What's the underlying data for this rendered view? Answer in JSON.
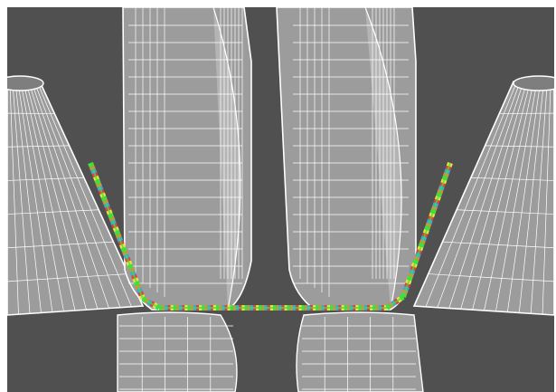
{
  "viewport": {
    "background": "#505050",
    "wireframe_color": "#ffffff",
    "surface_color": "#9c9c9c",
    "surface_dark": "#7e7e7e",
    "surface_light": "#b4b4b4"
  },
  "scene": {
    "objects": [
      {
        "name": "left-cone-roll",
        "kind": "conical roll"
      },
      {
        "name": "upper-left-roll",
        "kind": "cylindrical roll"
      },
      {
        "name": "upper-right-roll",
        "kind": "cylindrical roll"
      },
      {
        "name": "right-cone-roll",
        "kind": "conical roll"
      },
      {
        "name": "lower-left-roll",
        "kind": "cylindrical roll"
      },
      {
        "name": "lower-right-roll",
        "kind": "cylindrical roll"
      },
      {
        "name": "formed-strip",
        "kind": "meshed channel section"
      }
    ],
    "strip_mesh_colors": [
      "#3fe03f",
      "#e08a3a",
      "#3aa8e0",
      "#e04040",
      "#f0e040"
    ]
  }
}
